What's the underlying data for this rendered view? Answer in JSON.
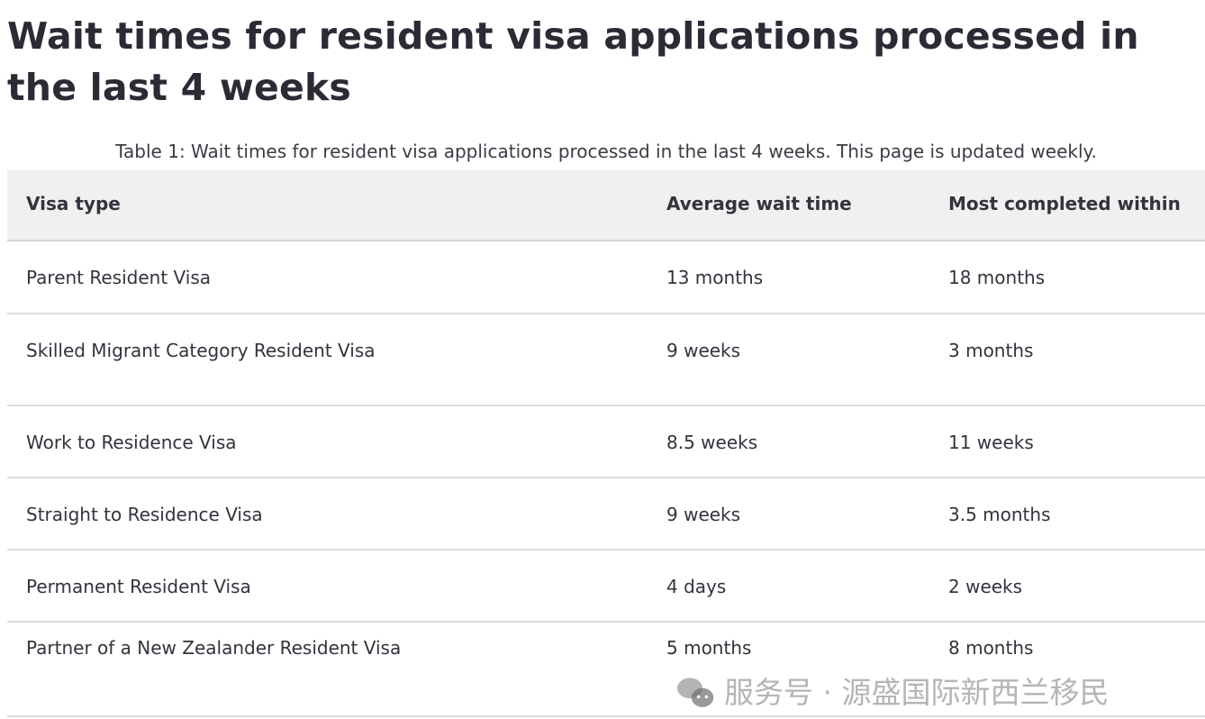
{
  "title": "Wait times for resident visa applications processed in the last 4 weeks",
  "caption": "Table 1: Wait times for resident visa applications processed in the last 4 weeks. This page is updated weekly.",
  "table": {
    "headers": [
      "Visa type",
      "Average wait time",
      "Most completed within"
    ],
    "rows": [
      [
        "Parent Resident Visa",
        "13 months",
        "18 months"
      ],
      [
        "Skilled Migrant Category Resident Visa",
        "9 weeks",
        "3 months"
      ],
      [
        "Work to Residence Visa",
        "8.5 weeks",
        "11 weeks"
      ],
      [
        "Straight to Residence Visa",
        "9 weeks",
        "3.5 months"
      ],
      [
        "Permanent Resident Visa",
        "4 days",
        "2 weeks"
      ],
      [
        "Partner of a New Zealander Resident Visa",
        "5 months",
        "8 months"
      ]
    ]
  },
  "watermark": {
    "icon": "wechat-icon",
    "text": "服务号 · 源盛国际新西兰移民"
  }
}
